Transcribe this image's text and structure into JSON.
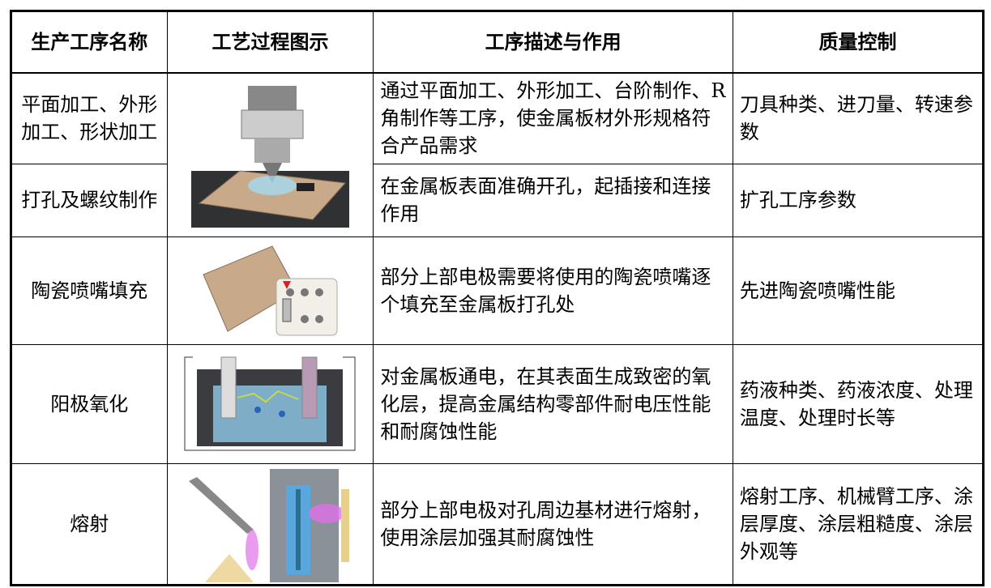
{
  "table": {
    "header": [
      "生产工序名称",
      "工艺过程图示",
      "工序描述与作用",
      "质量控制"
    ],
    "rows": [
      [
        "平面加工、外形加工、形状加工",
        "通过平面加工、外形加工、台阶制作、R 角制作等工序，使金属板材外形规格符合产品需求",
        "刀具种类、进刀量、转速参数"
      ],
      [
        "打孔及螺纹制作",
        "在金属板表面准确开孔，起插接和连接作用",
        "扩孔工序参数"
      ],
      [
        "陶瓷喷嘴填充",
        "部分上部电极需要将使用的陶瓷喷嘴逐个填充至金属板打孔处",
        "先进陶瓷喷嘴性能"
      ],
      [
        "阳极氧化",
        "对金属板通电，在其表面生成致密的氧化层，提高金属结构零部件耐电压性能和耐腐蚀性能",
        "药液种类、药液浓度、处理温度、处理时长等"
      ],
      [
        "熔射",
        "部分上部电极对孔周边基材进行熔射，使用涂层加强其耐腐蚀性",
        "熔射工序、机械臂工序、涂层厚度、涂层粗糙度、涂层外观等"
      ]
    ]
  }
}
